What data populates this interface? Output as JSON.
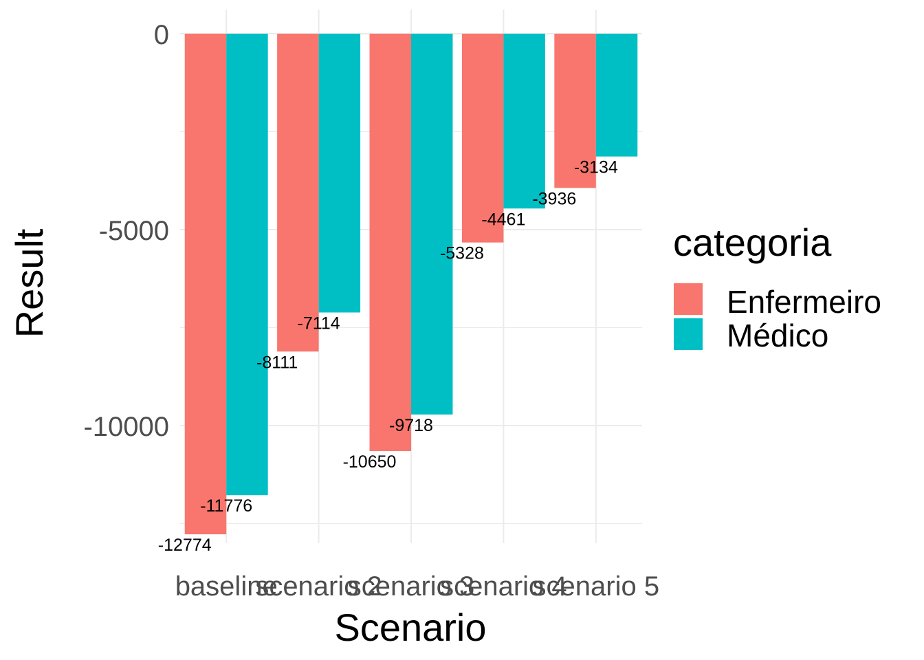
{
  "chart_data": {
    "type": "bar",
    "categories": [
      "baseline",
      "scenario 2",
      "scenario 3",
      "scenario 4",
      "scenario 5"
    ],
    "series": [
      {
        "name": "Enfermeiro",
        "values": [
          -12774,
          -8111,
          -10650,
          -5328,
          -3936
        ],
        "color": "#F8766D"
      },
      {
        "name": "Médico",
        "values": [
          -11776,
          -7114,
          -9718,
          -4461,
          -3134
        ],
        "color": "#00BFC4"
      }
    ],
    "xlabel": "Scenario",
    "ylabel": "Result",
    "ylim": [
      -13500,
      600
    ],
    "yticks": [
      0,
      -5000,
      -10000
    ],
    "ytick_labels": [
      "0",
      "-5000",
      "-10000"
    ],
    "grid": true,
    "legend": {
      "title": "categoria",
      "position": "right"
    }
  }
}
